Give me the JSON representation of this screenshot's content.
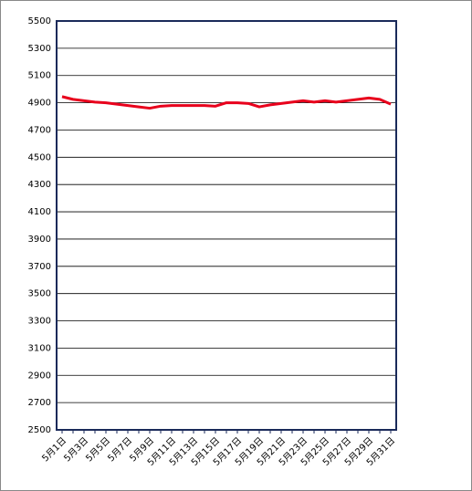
{
  "chart_data": {
    "type": "line",
    "categories": [
      "5月1日",
      null,
      "5月3日",
      null,
      "5月5日",
      null,
      "5月7日",
      null,
      "5月9日",
      null,
      "5月11日",
      null,
      "5月13日",
      null,
      "5月15日",
      null,
      "5月17日",
      null,
      "5月19日",
      null,
      "5月21日",
      null,
      "5月23日",
      null,
      "5月25日",
      null,
      "5月27日",
      null,
      "5月29日",
      null,
      "5月31日"
    ],
    "series": [
      {
        "color": "#e8001c",
        "values": [
          4945,
          4925,
          4915,
          4905,
          4900,
          4890,
          4880,
          4870,
          4860,
          4875,
          4880,
          4880,
          4880,
          4880,
          4875,
          4900,
          4900,
          4895,
          4870,
          4885,
          4895,
          4905,
          4915,
          4905,
          4915,
          4905,
          4915,
          4925,
          4935,
          4925,
          4890
        ]
      }
    ],
    "ylim": [
      2500,
      5500
    ],
    "yticks": [
      2500,
      2700,
      2900,
      3100,
      3300,
      3500,
      3700,
      3900,
      4100,
      4300,
      4500,
      4700,
      4900,
      5100,
      5300,
      5500
    ],
    "grid": true
  }
}
